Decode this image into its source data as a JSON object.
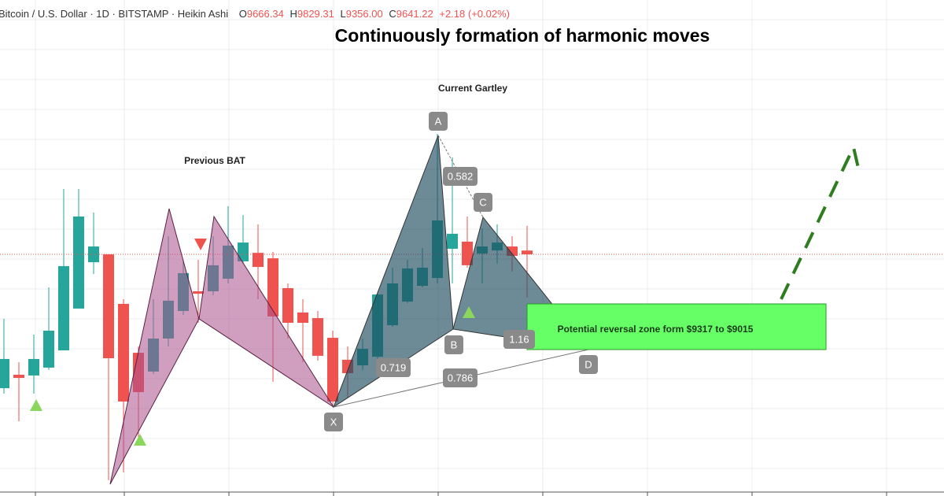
{
  "header": {
    "symbol": "Bitcoin / U.S. Dollar · 1D · BITSTAMP · Heikin Ashi",
    "o": "O",
    "o_value": "9666.34",
    "h": "H",
    "h_value": "9829.31",
    "l": "L",
    "l_value": "9356.00",
    "c": "C",
    "c_value": "9641.22",
    "change": "+2.18 (+0.02%)"
  },
  "chart_data": {
    "type": "candlestick",
    "title": "Continuously formation of harmonic moves",
    "up_color": "#26a69a",
    "down_color": "#ef5350",
    "ylim": [
      8071,
      11321
    ],
    "open": [
      8757,
      8846,
      8841,
      8893,
      9007,
      9283,
      9589,
      9641,
      9314,
      8991,
      8867,
      9085,
      9267,
      9397,
      9397,
      9480,
      9595,
      9651,
      9615,
      9418,
      9257,
      9220,
      9090,
      8945,
      8908,
      8965,
      9173,
      9329,
      9433,
      9485,
      9678,
      9725,
      9646,
      9667,
      9693,
      9666.34
    ],
    "high": [
      9215,
      8929,
      9111,
      9423,
      10073,
      10073,
      9917,
      9641,
      9345,
      9033,
      9345,
      9761,
      9605,
      9605,
      9761,
      9959,
      9901,
      9839,
      9657,
      9449,
      9345,
      9267,
      9137,
      9033,
      9085,
      9387,
      9553,
      9605,
      9683,
      10437,
      10281,
      9891,
      9813,
      9839,
      9761,
      9829.31
    ],
    "low": [
      8721,
      8539,
      8721,
      8877,
      9007,
      9283,
      9511,
      8149,
      8201,
      8409,
      8851,
      9033,
      9241,
      9189,
      9371,
      9449,
      9579,
      9345,
      8799,
      9085,
      8929,
      8939,
      8643,
      8695,
      8877,
      8929,
      9163,
      9319,
      9423,
      9449,
      9449,
      9553,
      9449,
      9579,
      9527,
      9356
    ],
    "close": [
      8950,
      8825,
      8950,
      9137,
      9563,
      9891,
      9693,
      8955,
      8669,
      8731,
      9085,
      9335,
      9517,
      9381,
      9569,
      9699,
      9719,
      9558,
      9231,
      9189,
      9189,
      8971,
      8669,
      8856,
      9017,
      9376,
      9449,
      9548,
      9553,
      9865,
      9777,
      9569,
      9693,
      9719,
      9631,
      9641.22
    ],
    "annotations": {
      "previous": "Previous BAT",
      "current": "Current Gartley",
      "zone": "Potential reversal zone form $9317 to $9015"
    },
    "points": {
      "x": "X",
      "a": "A",
      "b": "B",
      "c": "C",
      "d": "D"
    },
    "ratios": {
      "ab": 0.582,
      "bc": 0.719,
      "xd": 0.786,
      "cd": 1.16
    }
  }
}
